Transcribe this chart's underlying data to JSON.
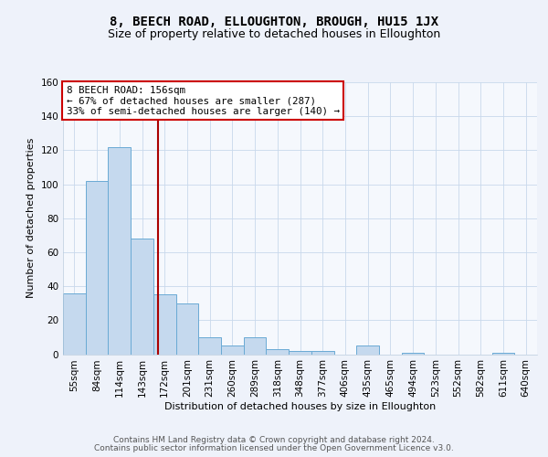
{
  "title": "8, BEECH ROAD, ELLOUGHTON, BROUGH, HU15 1JX",
  "subtitle": "Size of property relative to detached houses in Elloughton",
  "xlabel": "Distribution of detached houses by size in Elloughton",
  "ylabel": "Number of detached properties",
  "bin_labels": [
    "55sqm",
    "84sqm",
    "114sqm",
    "143sqm",
    "172sqm",
    "201sqm",
    "231sqm",
    "260sqm",
    "289sqm",
    "318sqm",
    "348sqm",
    "377sqm",
    "406sqm",
    "435sqm",
    "465sqm",
    "494sqm",
    "523sqm",
    "552sqm",
    "582sqm",
    "611sqm",
    "640sqm"
  ],
  "bar_heights": [
    36,
    102,
    122,
    68,
    35,
    30,
    10,
    5,
    10,
    3,
    2,
    2,
    0,
    5,
    0,
    1,
    0,
    0,
    0,
    1,
    0
  ],
  "bar_color": "#c5d9ee",
  "bar_edge_color": "#6aaad4",
  "vline_x": 3.72,
  "vline_color": "#aa0000",
  "annotation_text": "8 BEECH ROAD: 156sqm\n← 67% of detached houses are smaller (287)\n33% of semi-detached houses are larger (140) →",
  "annotation_box_color": "#ffffff",
  "annotation_box_edge": "#cc0000",
  "ylim": [
    0,
    160
  ],
  "yticks": [
    0,
    20,
    40,
    60,
    80,
    100,
    120,
    140,
    160
  ],
  "footer_line1": "Contains HM Land Registry data © Crown copyright and database right 2024.",
  "footer_line2": "Contains public sector information licensed under the Open Government Licence v3.0.",
  "bg_color": "#eef2fa",
  "plot_bg_color": "#f5f8fd",
  "title_fontsize": 10,
  "subtitle_fontsize": 9,
  "label_fontsize": 8,
  "tick_fontsize": 7.5,
  "footer_fontsize": 6.5
}
